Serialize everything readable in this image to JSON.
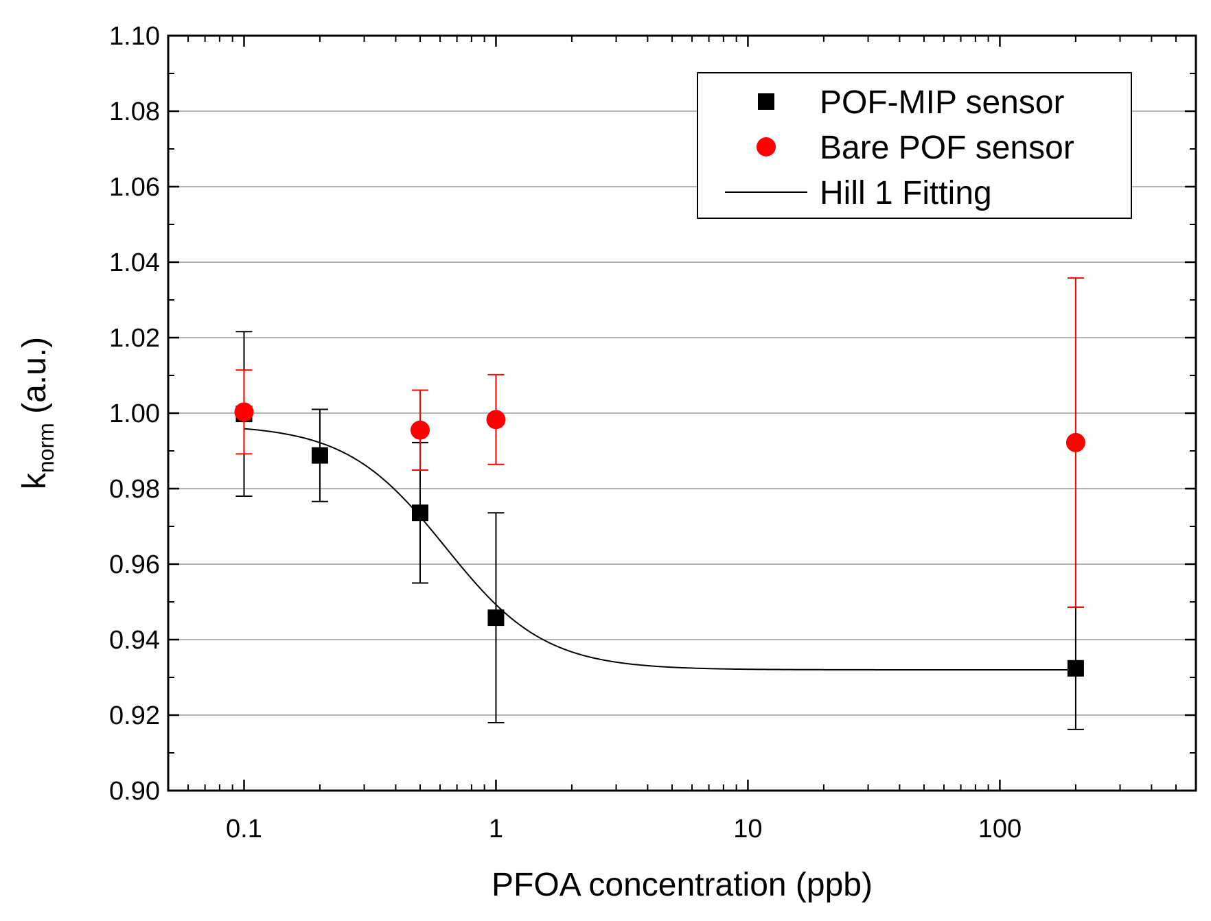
{
  "chart_data": {
    "type": "scatter",
    "title": "",
    "xlabel": "PFOA concentration (ppb)",
    "ylabel": {
      "base": "k",
      "subscript": "norm",
      "units": " (a.u.)"
    },
    "x_scale": "log",
    "xlim": [
      0.05,
      600
    ],
    "ylim": [
      0.9,
      1.1
    ],
    "x_tick_values": [
      0.1,
      1,
      10,
      100
    ],
    "x_tick_labels": [
      "0.1",
      "1",
      "10",
      "100"
    ],
    "y_tick_values": [
      0.9,
      0.92,
      0.94,
      0.96,
      0.98,
      1.0,
      1.02,
      1.04,
      1.06,
      1.08,
      1.1
    ],
    "y_tick_labels": [
      "0.90",
      "0.92",
      "0.94",
      "0.96",
      "0.98",
      "1.00",
      "1.02",
      "1.04",
      "1.06",
      "1.08",
      "1.10"
    ],
    "grid": "horizontal",
    "legend_position": "top-right",
    "series": [
      {
        "name": "POF-MIP sensor",
        "marker": "square",
        "color": "#000000",
        "points": [
          {
            "x": 0.1,
            "y": 0.9998,
            "err": 0.0218
          },
          {
            "x": 0.2,
            "y": 0.9888,
            "err": 0.0122
          },
          {
            "x": 0.5,
            "y": 0.9736,
            "err": 0.0186
          },
          {
            "x": 1,
            "y": 0.9458,
            "err": 0.0278
          },
          {
            "x": 200,
            "y": 0.9324,
            "err": 0.0162
          }
        ]
      },
      {
        "name": "Bare POF sensor",
        "marker": "circle",
        "color": "#ff0000",
        "points": [
          {
            "x": 0.1,
            "y": 1.0003,
            "err": 0.0111
          },
          {
            "x": 0.5,
            "y": 0.9955,
            "err": 0.0106
          },
          {
            "x": 1,
            "y": 0.9983,
            "err": 0.0119
          },
          {
            "x": 200,
            "y": 0.9922,
            "err": 0.0436
          }
        ]
      },
      {
        "name": "Hill 1 Fitting",
        "marker": "line",
        "color": "#000000",
        "model": "hill",
        "params": {
          "start": 0.997,
          "end": 0.932,
          "k": 0.63,
          "n": 2.2
        },
        "x_range": [
          0.1,
          200
        ]
      }
    ]
  }
}
